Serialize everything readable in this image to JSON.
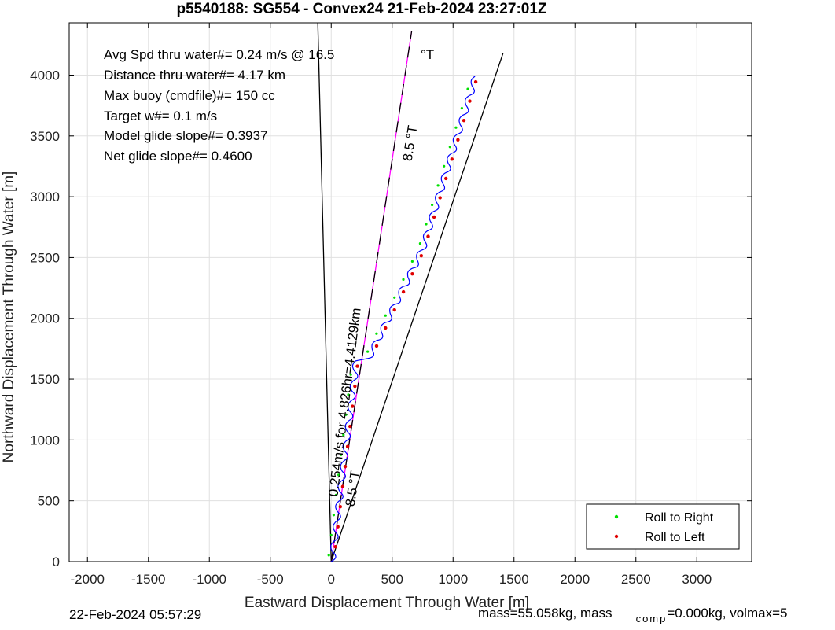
{
  "chart_data": {
    "type": "line",
    "title": "p5540188: SG554 - Convex24 21-Feb-2024 23:27:01Z",
    "xlabel": "Eastward Displacement Through Water [m]",
    "ylabel": "Northward Displacement Through Water [m]",
    "xlim": [
      -2150,
      3450
    ],
    "ylim": [
      0,
      4430
    ],
    "xticks": [
      -2000,
      -1500,
      -1000,
      -500,
      0,
      500,
      1000,
      1500,
      2000,
      2500,
      3000
    ],
    "yticks": [
      0,
      500,
      1000,
      1500,
      2000,
      2500,
      3000,
      3500,
      4000
    ],
    "grid": true,
    "legend_position": "bottom-right",
    "annotations": [
      "Avg Spd thru water#=  0.24 m/s @  16.5",
      "Distance thru water#=  4.17 km",
      "Max buoy (cmdfile)#= 150 cc",
      "Target w#= 0.1 m/s",
      "Model glide slope#= 0.3937",
      "Net glide slope#= 0.4600"
    ],
    "degT_label": "°T",
    "heading_label_upper": "8.5 °T",
    "heading_label_lower": "8.5 °T",
    "track_label": "0.254m/s for 4.826hr=4.4129km",
    "heading_lines": [
      {
        "name": "left bound",
        "x": [
          0,
          -110
        ],
        "y": [
          0,
          4430
        ],
        "color": "#000000"
      },
      {
        "name": "right bound",
        "x": [
          0,
          1410
        ],
        "y": [
          0,
          4180
        ],
        "color": "#000000"
      },
      {
        "name": "track direction",
        "x": [
          0,
          660
        ],
        "y": [
          0,
          4360
        ],
        "color": "#ff00ff",
        "dashed_overlay": true
      }
    ],
    "track_waypoints": {
      "x": [
        0,
        200,
        300,
        740,
        1180
      ],
      "y": [
        0,
        1650,
        1670,
        2560,
        3990
      ]
    },
    "series": [
      {
        "name": "Roll to Right",
        "color": "#00e000"
      },
      {
        "name": "Roll to Left",
        "color": "#e00000"
      }
    ],
    "track_color": "#0000ff"
  },
  "footer": {
    "date": "22-Feb-2024 05:57:29",
    "mass_text": "mass=55.058kg, mass",
    "mass_sub": "comp",
    "mass_text_2": "=0.000kg, volmax=5"
  }
}
